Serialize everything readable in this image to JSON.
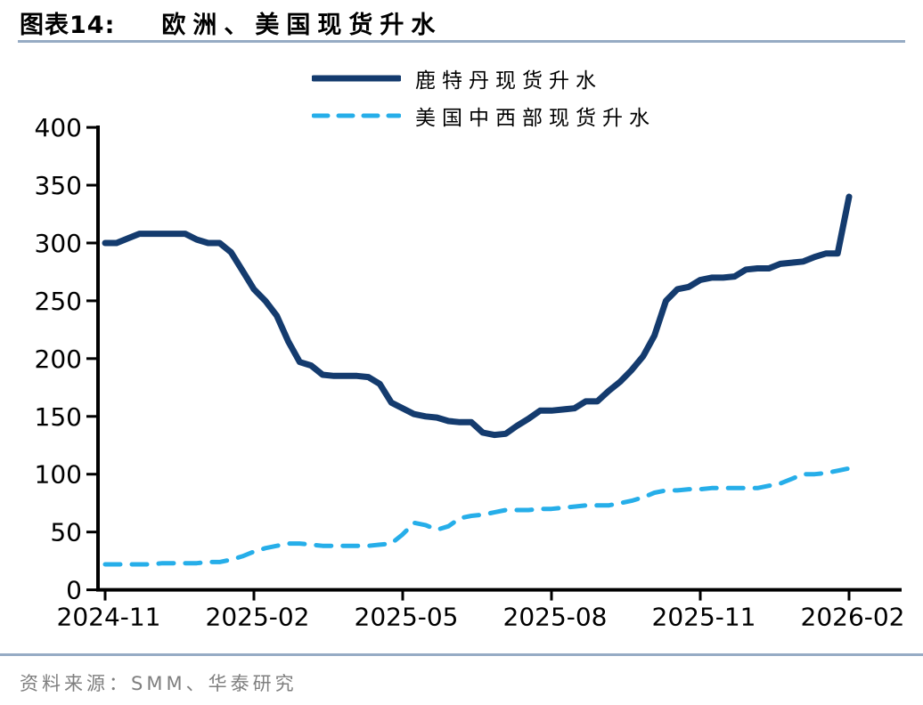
{
  "figure": {
    "label": "图表14:",
    "title": "欧洲、美国现货升水"
  },
  "legend": {
    "items": [
      {
        "label": "鹿特丹现货升水",
        "color": "#143b6e",
        "style": "solid"
      },
      {
        "label": "美国中西部现货升水",
        "color": "#26aee9",
        "style": "dashed"
      }
    ]
  },
  "source": {
    "text": "资料来源：SMM、华泰研究"
  },
  "colors": {
    "rotterdam_line": "#143b6e",
    "us_midwest_line": "#26aee9",
    "axis": "#000000",
    "rule": "#96abc4",
    "source_text": "#7f7f7f"
  },
  "chart_data": {
    "type": "line",
    "title": "欧洲、美国现货升水",
    "xlabel": "",
    "ylabel": "",
    "ylim": [
      0,
      400
    ],
    "y_ticks": [
      0,
      50,
      100,
      150,
      200,
      250,
      300,
      350,
      400
    ],
    "x_tick_labels": [
      "2024-11",
      "2025-02",
      "2025-05",
      "2025-08",
      "2025-11",
      "2026-02"
    ],
    "x_tick_indices": [
      0,
      13,
      26,
      39,
      52,
      65
    ],
    "x_start": "2024-11",
    "x_end": "2026-02",
    "frequency": "weekly",
    "grid": false,
    "legend_position": "top-center",
    "series": [
      {
        "name": "鹿特丹现货升水",
        "color": "#143b6e",
        "style": "solid",
        "values": [
          300,
          300,
          304,
          308,
          308,
          308,
          308,
          308,
          303,
          300,
          300,
          292,
          276,
          260,
          250,
          237,
          215,
          197,
          194,
          186,
          185,
          185,
          185,
          184,
          178,
          162,
          157,
          152,
          150,
          149,
          146,
          145,
          145,
          136,
          134,
          135,
          142,
          148,
          155,
          155,
          156,
          157,
          163,
          163,
          172,
          180,
          190,
          202,
          220,
          250,
          260,
          262,
          268,
          270,
          270,
          271,
          277,
          278,
          278,
          282,
          283,
          284,
          288,
          291,
          291,
          340
        ]
      },
      {
        "name": "美国中西部现货升水",
        "color": "#26aee9",
        "style": "dashed",
        "values": [
          22,
          22,
          22,
          22,
          22,
          23,
          23,
          23,
          23,
          24,
          24,
          26,
          29,
          33,
          36,
          38,
          40,
          40,
          39,
          38,
          38,
          38,
          38,
          38,
          39,
          40,
          48,
          58,
          56,
          52,
          55,
          62,
          64,
          65,
          67,
          69,
          69,
          69,
          70,
          70,
          71,
          72,
          73,
          73,
          73,
          75,
          77,
          80,
          84,
          86,
          86,
          87,
          87,
          88,
          88,
          88,
          88,
          88,
          90,
          92,
          96,
          100,
          100,
          101,
          103,
          105
        ]
      }
    ]
  }
}
